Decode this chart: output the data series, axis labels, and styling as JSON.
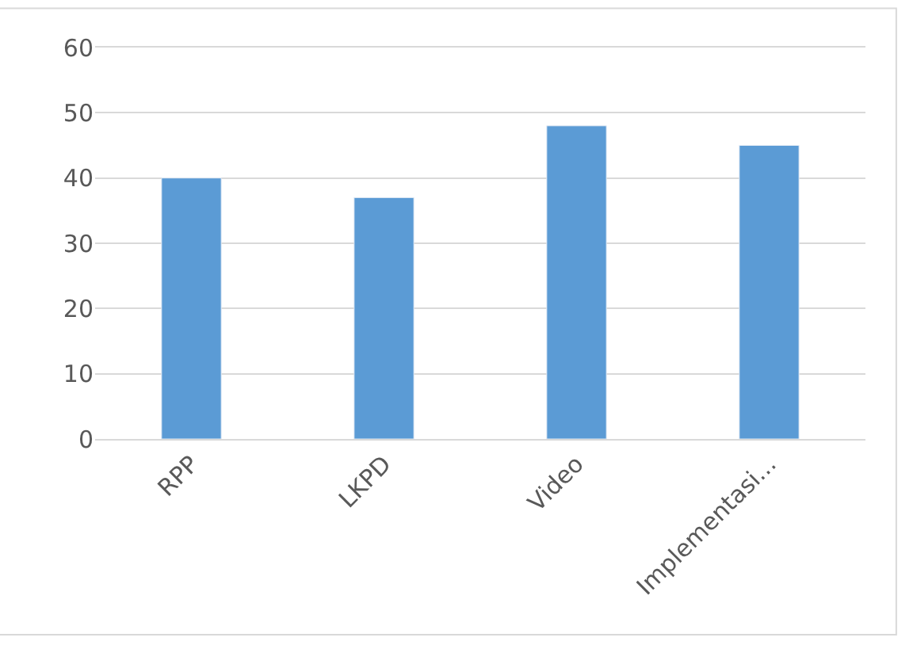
{
  "chart_data": {
    "type": "bar",
    "categories": [
      "RPP",
      "LKPD",
      "Video",
      "Implementasi..."
    ],
    "values": [
      40,
      37,
      48,
      45
    ],
    "color": "#5b9bd5",
    "ylim": [
      0,
      60
    ],
    "yticks": [
      0,
      10,
      20,
      30,
      40,
      50,
      60
    ],
    "grid": "y"
  }
}
